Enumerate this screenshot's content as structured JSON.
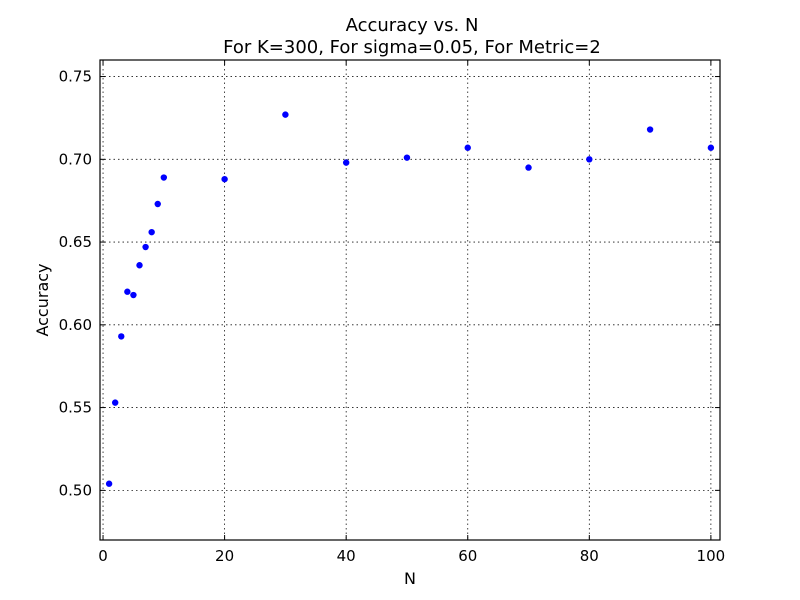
{
  "chart_data": {
    "type": "scatter",
    "title": "Accuracy vs. N",
    "subtitle": "For K=300, For sigma=0.05, For Metric=2",
    "xlabel": "N",
    "ylabel": "Accuracy",
    "xlim": [
      -0.5,
      101.5
    ],
    "ylim": [
      0.47,
      0.76
    ],
    "xticks": [
      0,
      20,
      40,
      60,
      80,
      100
    ],
    "xtick_labels": [
      "0",
      "20",
      "40",
      "60",
      "80",
      "100"
    ],
    "yticks": [
      0.5,
      0.55,
      0.6,
      0.65,
      0.7,
      0.75
    ],
    "ytick_labels": [
      "0.50",
      "0.55",
      "0.60",
      "0.65",
      "0.70",
      "0.75"
    ],
    "grid": true,
    "marker_color": "#0000ff",
    "points": [
      {
        "x": 1,
        "y": 0.504
      },
      {
        "x": 2,
        "y": 0.553
      },
      {
        "x": 3,
        "y": 0.593
      },
      {
        "x": 4,
        "y": 0.62
      },
      {
        "x": 5,
        "y": 0.618
      },
      {
        "x": 6,
        "y": 0.636
      },
      {
        "x": 7,
        "y": 0.647
      },
      {
        "x": 8,
        "y": 0.656
      },
      {
        "x": 9,
        "y": 0.673
      },
      {
        "x": 10,
        "y": 0.689
      },
      {
        "x": 20,
        "y": 0.688
      },
      {
        "x": 30,
        "y": 0.727
      },
      {
        "x": 40,
        "y": 0.698
      },
      {
        "x": 50,
        "y": 0.701
      },
      {
        "x": 60,
        "y": 0.707
      },
      {
        "x": 70,
        "y": 0.695
      },
      {
        "x": 80,
        "y": 0.7
      },
      {
        "x": 90,
        "y": 0.718
      },
      {
        "x": 100,
        "y": 0.707
      }
    ]
  }
}
